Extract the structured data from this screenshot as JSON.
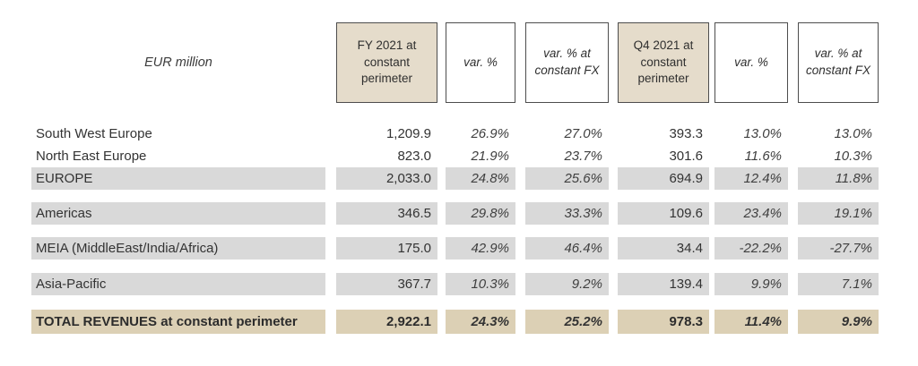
{
  "unit_label": "EUR million",
  "header": {
    "col1": "FY 2021 at constant perimeter",
    "col2": "var. %",
    "col3": "var. % at constant FX",
    "col4": "Q4 2021 at constant perimeter",
    "col5": "var. %",
    "col6": "var. % at constant FX"
  },
  "rows": [
    {
      "label": "South West Europe",
      "values": [
        "1,209.9",
        "26.9%",
        "27.0%",
        "393.3",
        "13.0%",
        "13.0%"
      ],
      "style": "plain"
    },
    {
      "label": "North East Europe",
      "values": [
        "823.0",
        "21.9%",
        "23.7%",
        "301.6",
        "11.6%",
        "10.3%"
      ],
      "style": "plain"
    },
    {
      "label": "EUROPE",
      "values": [
        "2,033.0",
        "24.8%",
        "25.6%",
        "694.9",
        "12.4%",
        "11.8%"
      ],
      "style": "subtotal"
    },
    {
      "label": "Americas",
      "values": [
        "346.5",
        "29.8%",
        "33.3%",
        "109.6",
        "23.4%",
        "19.1%"
      ],
      "style": "subtotal"
    },
    {
      "label": "MEIA (MiddleEast/India/Africa)",
      "values": [
        "175.0",
        "42.9%",
        "46.4%",
        "34.4",
        "-22.2%",
        "-27.7%"
      ],
      "style": "subtotal"
    },
    {
      "label": "Asia-Pacific",
      "values": [
        "367.7",
        "10.3%",
        "9.2%",
        "139.4",
        "9.9%",
        "7.1%"
      ],
      "style": "subtotal"
    },
    {
      "label": "TOTAL REVENUES at constant perimeter",
      "values": [
        "2,922.1",
        "24.3%",
        "25.2%",
        "978.3",
        "11.4%",
        "9.9%"
      ],
      "style": "total"
    }
  ],
  "colors": {
    "header_tan": "#e5dccb",
    "row_gray": "#d9d9d9",
    "total_tan": "#dcd0b5",
    "border_color": "#4d4d4d",
    "text_color": "#333333"
  }
}
